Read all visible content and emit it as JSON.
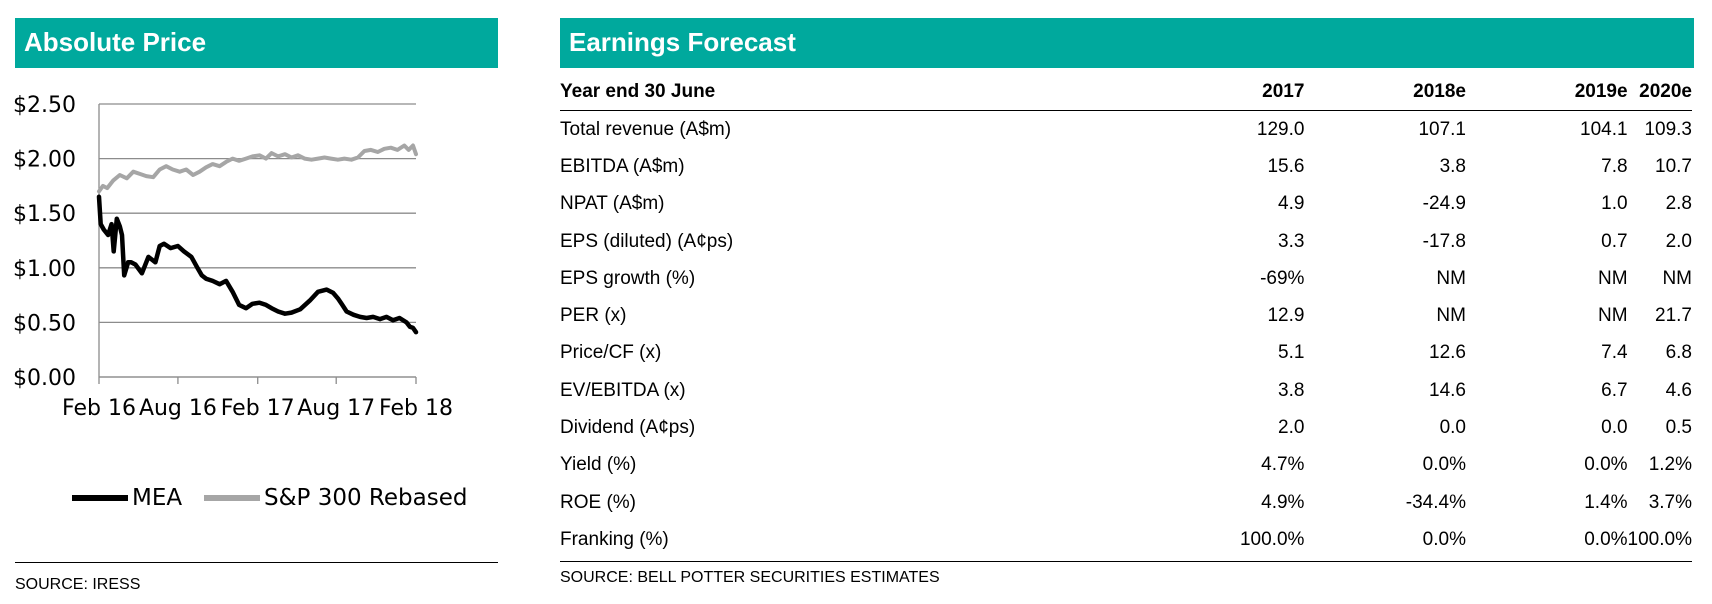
{
  "left_panel": {
    "title": "Absolute Price",
    "source": "SOURCE: IRESS"
  },
  "right_panel": {
    "title": "Earnings Forecast",
    "source": "SOURCE: BELL POTTER SECURITIES ESTIMATES",
    "header": [
      "Year end 30 June",
      "2017",
      "2018e",
      "2019e",
      "2020e"
    ],
    "rows": [
      [
        "Total revenue (A$m)",
        "129.0",
        "107.1",
        "104.1",
        "109.3"
      ],
      [
        "EBITDA (A$m)",
        "15.6",
        "3.8",
        "7.8",
        "10.7"
      ],
      [
        "NPAT (A$m)",
        "4.9",
        "-24.9",
        "1.0",
        "2.8"
      ],
      [
        "EPS (diluted) (A¢ps)",
        "3.3",
        "-17.8",
        "0.7",
        "2.0"
      ],
      [
        "EPS growth (%)",
        "-69%",
        "NM",
        "NM",
        "NM"
      ],
      [
        "PER (x)",
        "12.9",
        "NM",
        "NM",
        "21.7"
      ],
      [
        "Price/CF (x)",
        "5.1",
        "12.6",
        "7.4",
        "6.8"
      ],
      [
        "EV/EBITDA (x)",
        "3.8",
        "14.6",
        "6.7",
        "4.6"
      ],
      [
        "Dividend (A¢ps)",
        "2.0",
        "0.0",
        "0.0",
        "0.5"
      ],
      [
        "Yield (%)",
        "4.7%",
        "0.0%",
        "0.0%",
        "1.2%"
      ],
      [
        "ROE (%)",
        "4.9%",
        "-34.4%",
        "1.4%",
        "3.7%"
      ],
      [
        "Franking (%)",
        "100.0%",
        "0.0%",
        "0.0%",
        "100.0%"
      ]
    ]
  },
  "colors": {
    "accent": "#00A99D",
    "mea": "#000000",
    "sp": "#A6A6A6"
  },
  "chart_data": {
    "type": "line",
    "y_tick_labels": [
      "$0.00",
      "$0.50",
      "$1.00",
      "$1.50",
      "$2.00",
      "$2.50"
    ],
    "y_ticks": [
      0,
      0.5,
      1.0,
      1.5,
      2.0,
      2.5
    ],
    "ylim": [
      0,
      2.5
    ],
    "x_tick_labels": [
      "Feb 16",
      "Aug 16",
      "Feb 17",
      "Aug 17",
      "Feb 18"
    ],
    "x_ticks": [
      "2016-02",
      "2016-08",
      "2017-02",
      "2017-08",
      "2018-02"
    ],
    "xlim": [
      "2016-02",
      "2018-02"
    ],
    "grid": true,
    "legend_position": "bottom",
    "series": [
      {
        "name": "MEA",
        "color": "#000000",
        "x": [
          "2016-02-01",
          "2016-02-05",
          "2016-02-12",
          "2016-02-22",
          "2016-03-01",
          "2016-03-06",
          "2016-03-13",
          "2016-03-20",
          "2016-03-25",
          "2016-03-30",
          "2016-04-08",
          "2016-04-15",
          "2016-04-25",
          "2016-05-10",
          "2016-05-25",
          "2016-06-10",
          "2016-06-20",
          "2016-06-30",
          "2016-07-15",
          "2016-08-01",
          "2016-08-15",
          "2016-09-01",
          "2016-09-15",
          "2016-09-25",
          "2016-10-05",
          "2016-10-20",
          "2016-11-05",
          "2016-11-20",
          "2016-12-05",
          "2016-12-20",
          "2017-01-05",
          "2017-01-20",
          "2017-02-05",
          "2017-02-20",
          "2017-03-05",
          "2017-03-20",
          "2017-04-05",
          "2017-04-20",
          "2017-05-10",
          "2017-06-01",
          "2017-06-20",
          "2017-07-10",
          "2017-07-25",
          "2017-08-05",
          "2017-08-15",
          "2017-08-25",
          "2017-09-10",
          "2017-09-25",
          "2017-10-10",
          "2017-10-25",
          "2017-11-10",
          "2017-11-25",
          "2017-12-10",
          "2017-12-25",
          "2018-01-10",
          "2018-01-18",
          "2018-01-25",
          "2018-02-01"
        ],
        "values": [
          1.65,
          1.4,
          1.35,
          1.3,
          1.4,
          1.15,
          1.45,
          1.38,
          1.3,
          0.93,
          1.05,
          1.05,
          1.03,
          0.95,
          1.1,
          1.05,
          1.2,
          1.22,
          1.18,
          1.2,
          1.15,
          1.1,
          1.0,
          0.93,
          0.9,
          0.88,
          0.85,
          0.88,
          0.78,
          0.66,
          0.63,
          0.67,
          0.68,
          0.66,
          0.63,
          0.6,
          0.58,
          0.59,
          0.62,
          0.7,
          0.78,
          0.8,
          0.77,
          0.72,
          0.66,
          0.6,
          0.57,
          0.55,
          0.54,
          0.55,
          0.53,
          0.55,
          0.52,
          0.54,
          0.5,
          0.46,
          0.45,
          0.41
        ]
      },
      {
        "name": "S&P 300 Rebased",
        "color": "#A6A6A6",
        "x": [
          "2016-02-01",
          "2016-02-10",
          "2016-02-20",
          "2016-03-05",
          "2016-03-20",
          "2016-04-05",
          "2016-04-20",
          "2016-05-05",
          "2016-05-20",
          "2016-06-05",
          "2016-06-20",
          "2016-07-05",
          "2016-07-20",
          "2016-08-05",
          "2016-08-20",
          "2016-09-05",
          "2016-09-20",
          "2016-10-05",
          "2016-10-20",
          "2016-11-05",
          "2016-11-20",
          "2016-12-05",
          "2016-12-20",
          "2017-01-05",
          "2017-01-20",
          "2017-02-05",
          "2017-02-20",
          "2017-03-05",
          "2017-03-20",
          "2017-04-05",
          "2017-04-20",
          "2017-05-05",
          "2017-05-20",
          "2017-06-05",
          "2017-06-20",
          "2017-07-05",
          "2017-07-20",
          "2017-08-05",
          "2017-08-20",
          "2017-09-05",
          "2017-09-20",
          "2017-10-05",
          "2017-10-20",
          "2017-11-05",
          "2017-11-20",
          "2017-12-05",
          "2017-12-20",
          "2018-01-05",
          "2018-01-15",
          "2018-01-25",
          "2018-02-01"
        ],
        "values": [
          1.7,
          1.75,
          1.73,
          1.8,
          1.85,
          1.82,
          1.88,
          1.86,
          1.84,
          1.83,
          1.9,
          1.93,
          1.9,
          1.88,
          1.9,
          1.85,
          1.88,
          1.92,
          1.95,
          1.93,
          1.97,
          2.0,
          1.98,
          2.0,
          2.02,
          2.03,
          2.0,
          2.05,
          2.02,
          2.04,
          2.01,
          2.03,
          2.0,
          1.99,
          2.0,
          2.01,
          2.0,
          1.99,
          2.0,
          1.99,
          2.01,
          2.07,
          2.08,
          2.06,
          2.09,
          2.1,
          2.08,
          2.12,
          2.08,
          2.12,
          2.04
        ]
      }
    ]
  }
}
